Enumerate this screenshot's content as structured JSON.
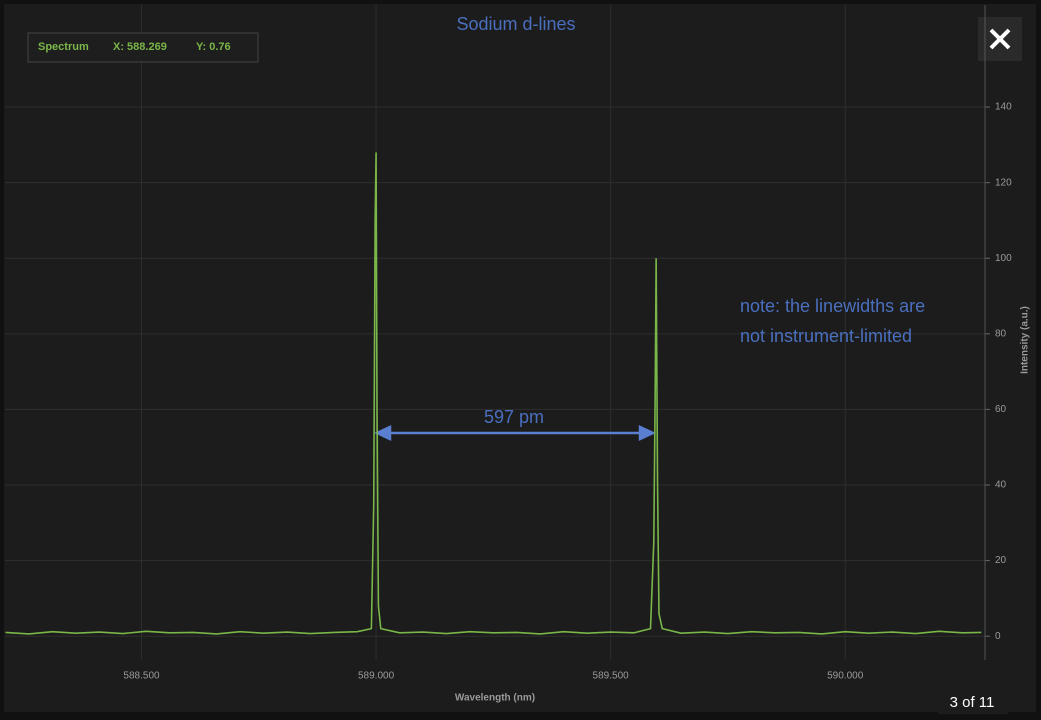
{
  "chart_data": {
    "type": "line",
    "title": "Sodium d-lines",
    "x_label": "Wavelength (nm)",
    "y_label": "Intensity (a.u.)",
    "xlim": [
      588.209,
      590.298
    ],
    "ylim": [
      -6.3,
      167
    ],
    "xticks": [
      {
        "value": 588.5,
        "label": "588.500"
      },
      {
        "value": 589.0,
        "label": "589.000"
      },
      {
        "value": 589.5,
        "label": "589.500"
      },
      {
        "value": 590.0,
        "label": "590.000"
      }
    ],
    "yticks": [
      0,
      20,
      40,
      60,
      80,
      100,
      120,
      140
    ],
    "grid": true,
    "series": [
      {
        "name": "Spectrum",
        "color": "#7ab648",
        "x": [
          588.21,
          588.26,
          588.31,
          588.36,
          588.41,
          588.46,
          588.51,
          588.56,
          588.61,
          588.66,
          588.71,
          588.76,
          588.81,
          588.86,
          588.91,
          588.96,
          588.99,
          588.995,
          588.998,
          589.0,
          589.002,
          589.005,
          589.01,
          589.05,
          589.1,
          589.15,
          589.2,
          589.25,
          589.3,
          589.35,
          589.4,
          589.45,
          589.5,
          589.55,
          589.585,
          589.592,
          589.595,
          589.597,
          589.6,
          589.603,
          589.61,
          589.65,
          589.7,
          589.75,
          589.8,
          589.85,
          589.9,
          589.95,
          590.0,
          590.05,
          590.1,
          590.15,
          590.2,
          590.25,
          590.29
        ],
        "values": [
          1,
          0.6,
          1.2,
          0.8,
          1.1,
          0.7,
          1.3,
          0.9,
          1.0,
          0.6,
          1.2,
          0.8,
          1.1,
          0.7,
          1.0,
          1.2,
          2,
          35,
          110,
          128,
          60,
          8,
          2,
          0.9,
          1.1,
          0.7,
          1.2,
          0.9,
          1.0,
          0.6,
          1.2,
          0.8,
          1.1,
          0.9,
          2,
          25,
          65,
          100,
          40,
          6,
          2,
          0.8,
          1.1,
          0.7,
          1.2,
          0.9,
          1.0,
          0.6,
          1.2,
          0.8,
          1.1,
          0.7,
          1.3,
          0.9,
          1.0
        ]
      }
    ],
    "cursor": {
      "series_label": "Spectrum",
      "x_readout": "X: 588.269",
      "y_readout": "Y: 0.76"
    },
    "annotations": {
      "separation": "597 pm",
      "note": [
        "note: the linewidths are",
        "not instrument-limited"
      ]
    }
  },
  "viewer": {
    "counter": "3 of 11"
  }
}
